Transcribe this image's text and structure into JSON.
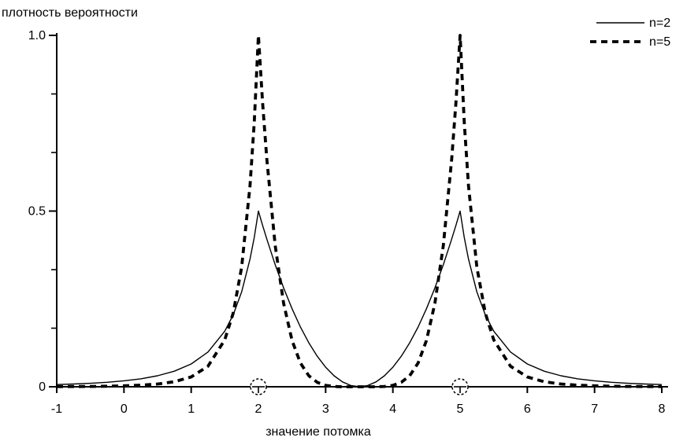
{
  "colors": {
    "foreground": "#000000",
    "background": "#ffffff"
  },
  "chart_data": {
    "type": "line",
    "title": "плотность вероятности",
    "xlabel": "значение потомка",
    "ylabel": "",
    "xlim": [
      -1,
      8
    ],
    "ylim": [
      0,
      1
    ],
    "grid": false,
    "legend_position": "top-right",
    "x_axis": {
      "ticks": [
        {
          "v": -1,
          "label": "-1"
        },
        {
          "v": 0,
          "label": "0"
        },
        {
          "v": 1,
          "label": "1"
        },
        {
          "v": 2,
          "label": "2"
        },
        {
          "v": 3,
          "label": "3"
        },
        {
          "v": 4,
          "label": "4"
        },
        {
          "v": 5,
          "label": "5"
        },
        {
          "v": 6,
          "label": "6"
        },
        {
          "v": 7,
          "label": "7"
        },
        {
          "v": 8,
          "label": "8"
        }
      ]
    },
    "y_axis": {
      "major": [
        {
          "v": 0,
          "label": "0"
        },
        {
          "v": 0.5,
          "label": "0.5"
        },
        {
          "v": 1,
          "label": "1.0"
        }
      ],
      "minor": [
        0.1667,
        0.3333,
        0.6667,
        0.8333
      ]
    },
    "parent_markers": {
      "x": [
        2,
        5
      ],
      "symbol": "dashed-circle-with-tick"
    },
    "series": [
      {
        "name": "n=2",
        "style": "solid",
        "peak_x": [
          2,
          5
        ],
        "peak_y": 0.5,
        "x": [
          -1,
          -0.75,
          -0.5,
          -0.25,
          0,
          0.25,
          0.5,
          0.75,
          1,
          1.25,
          1.5,
          1.625,
          1.75,
          1.875,
          1.9375,
          2,
          2.0625,
          2.125,
          2.25,
          2.375,
          2.5,
          2.625,
          2.75,
          2.875,
          3,
          3.125,
          3.25,
          3.375,
          3.5,
          3.625,
          3.75,
          3.875,
          4,
          4.125,
          4.25,
          4.375,
          4.5,
          4.625,
          4.75,
          4.875,
          4.9375,
          5,
          5.0625,
          5.125,
          5.25,
          5.375,
          5.5,
          5.75,
          6,
          6.25,
          6.5,
          6.75,
          7,
          7.25,
          7.5,
          7.75,
          8
        ],
        "y": [
          0.0062,
          0.0078,
          0.0099,
          0.0128,
          0.0169,
          0.0227,
          0.0313,
          0.0443,
          0.0648,
          0.0988,
          0.1582,
          0.2048,
          0.2699,
          0.363,
          0.4247,
          0.5,
          0.4592,
          0.4201,
          0.3472,
          0.2813,
          0.2222,
          0.1701,
          0.125,
          0.0868,
          0.0556,
          0.0313,
          0.0139,
          0.0035,
          0,
          0.0035,
          0.0139,
          0.0313,
          0.0556,
          0.0868,
          0.125,
          0.1701,
          0.2222,
          0.2813,
          0.3472,
          0.4201,
          0.4592,
          0.5,
          0.4247,
          0.363,
          0.2699,
          0.2048,
          0.1582,
          0.0988,
          0.0648,
          0.0443,
          0.0313,
          0.0227,
          0.0169,
          0.0128,
          0.0099,
          0.0078,
          0.0062
        ]
      },
      {
        "name": "n=5",
        "style": "dashed",
        "peak_x": [
          2,
          5
        ],
        "peak_y": 1.0,
        "x": [
          -1,
          -0.75,
          -0.5,
          -0.25,
          0,
          0.25,
          0.5,
          0.75,
          1,
          1.25,
          1.5,
          1.625,
          1.75,
          1.875,
          1.9375,
          2,
          2.0625,
          2.125,
          2.25,
          2.375,
          2.5,
          2.625,
          2.75,
          2.875,
          3,
          3.125,
          3.25,
          3.375,
          3.5,
          3.625,
          3.75,
          3.875,
          4,
          4.125,
          4.25,
          4.375,
          4.5,
          4.625,
          4.75,
          4.875,
          4.9375,
          5,
          5.0625,
          5.125,
          5.25,
          5.375,
          5.5,
          5.75,
          6,
          6.25,
          6.5,
          6.75,
          7,
          7.25,
          7.5,
          7.75,
          8
        ],
        "y": [
          0.0005,
          0.0007,
          0.001,
          0.0016,
          0.0027,
          0.0045,
          0.0078,
          0.0144,
          0.028,
          0.0585,
          0.1335,
          0.2097,
          0.3399,
          0.5711,
          0.7514,
          1,
          0.8083,
          0.6472,
          0.4019,
          0.2373,
          0.1317,
          0.0675,
          0.0313,
          0.0126,
          0.0041,
          0.001,
          0.0001,
          0,
          0,
          0,
          0.0001,
          0.001,
          0.0041,
          0.0126,
          0.0313,
          0.0675,
          0.1317,
          0.2373,
          0.4019,
          0.6472,
          0.8083,
          1,
          0.7514,
          0.5711,
          0.3399,
          0.2097,
          0.1335,
          0.0585,
          0.028,
          0.0144,
          0.0078,
          0.0045,
          0.0027,
          0.0016,
          0.001,
          0.0007,
          0.0005
        ]
      }
    ]
  }
}
